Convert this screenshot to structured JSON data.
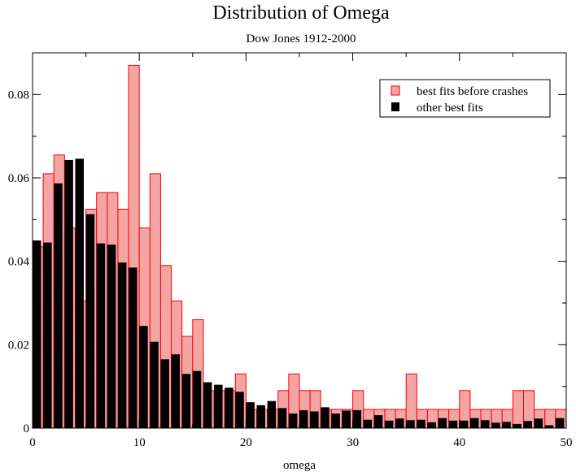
{
  "chart_data": {
    "type": "bar",
    "title": "Distribution of Omega",
    "subtitle": "Dow Jones 1912-2000",
    "xlabel": "omega",
    "ylabel": "",
    "xlim": [
      0,
      50
    ],
    "ylim": [
      0,
      0.09
    ],
    "bin_width": 1,
    "grid": false,
    "legend_position": "top-right",
    "x_ticks": [
      "0",
      "10",
      "20",
      "30",
      "40",
      "50"
    ],
    "y_ticks": [
      "0",
      "0.02",
      "0.04",
      "0.06",
      "0.08"
    ],
    "bin_centers": [
      0.5,
      1.5,
      2.5,
      3.5,
      4.5,
      5.5,
      6.5,
      7.5,
      8.5,
      9.5,
      10.5,
      11.5,
      12.5,
      13.5,
      14.5,
      15.5,
      16.5,
      17.5,
      18.5,
      19.5,
      20.5,
      21.5,
      22.5,
      23.5,
      24.5,
      25.5,
      26.5,
      27.5,
      28.5,
      29.5,
      30.5,
      31.5,
      32.5,
      33.5,
      34.5,
      35.5,
      36.5,
      37.5,
      38.5,
      39.5,
      40.5,
      41.5,
      42.5,
      43.5,
      44.5,
      45.5,
      46.5,
      47.5,
      48.5,
      49.5
    ],
    "series": [
      {
        "name": "best fits before crashes",
        "color": "#ff7f7f",
        "edge_color": "#ff0000",
        "values": [
          0.0435,
          0.061,
          0.0655,
          0.048,
          0.0305,
          0.0525,
          0.0565,
          0.0565,
          0.0525,
          0.087,
          0.048,
          0.061,
          0.039,
          0.0305,
          0.022,
          0.026,
          0.009,
          0.009,
          0.009,
          0.013,
          0.0045,
          0.0045,
          0.0045,
          0.009,
          0.013,
          0.009,
          0.009,
          0.0045,
          0.0045,
          0.0045,
          0.009,
          0.0045,
          0.0045,
          0.0045,
          0.0045,
          0.013,
          0.0045,
          0.0045,
          0.0045,
          0.0045,
          0.009,
          0.0045,
          0.0045,
          0.0045,
          0.0045,
          0.009,
          0.009,
          0.0045,
          0.0045,
          0.0045
        ]
      },
      {
        "name": "other best fits",
        "color": "#000000",
        "values": [
          0.045,
          0.0445,
          0.0587,
          0.0643,
          0.0646,
          0.0513,
          0.0443,
          0.044,
          0.0397,
          0.0385,
          0.0245,
          0.0207,
          0.0165,
          0.0177,
          0.013,
          0.0137,
          0.011,
          0.0104,
          0.0097,
          0.0087,
          0.0062,
          0.0055,
          0.0065,
          0.0048,
          0.0035,
          0.0043,
          0.004,
          0.005,
          0.0035,
          0.0042,
          0.0043,
          0.002,
          0.0031,
          0.0018,
          0.0023,
          0.0019,
          0.002,
          0.0014,
          0.0024,
          0.0018,
          0.0018,
          0.0024,
          0.0019,
          0.0013,
          0.0015,
          0.001,
          0.0017,
          0.0023,
          0.0007,
          0.0024
        ]
      }
    ]
  }
}
